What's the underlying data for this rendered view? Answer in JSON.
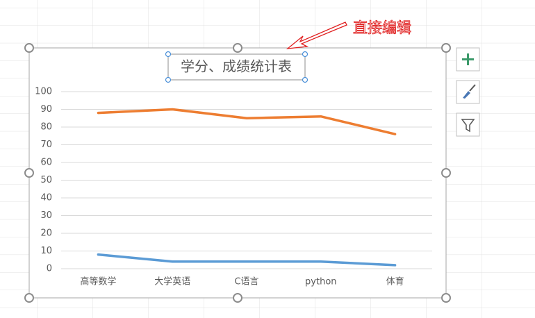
{
  "chart_data": {
    "type": "line",
    "title": "学分、成绩统计表",
    "annotation": "直接编辑",
    "categories": [
      "高等数学",
      "大学英语",
      "C语言",
      "python",
      "体育"
    ],
    "series": [
      {
        "color": "#5b9bd5",
        "values": [
          8,
          4,
          4,
          4,
          2
        ]
      },
      {
        "color": "#ed7d31",
        "values": [
          88,
          90,
          85,
          86,
          76
        ]
      }
    ],
    "ylim": [
      0,
      100
    ],
    "yticks": [
      0,
      10,
      20,
      30,
      40,
      50,
      60,
      70,
      80,
      90,
      100
    ],
    "grid": true
  }
}
